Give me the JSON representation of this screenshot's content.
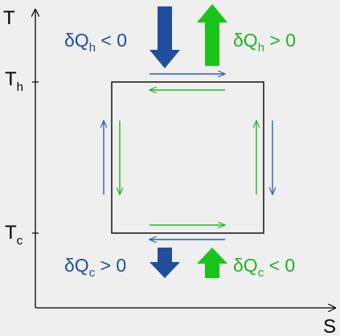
{
  "axes": {
    "y_label": "T",
    "x_label": "S",
    "tick_high": {
      "main": "T",
      "sub": "h"
    },
    "tick_low": {
      "main": "T",
      "sub": "c"
    }
  },
  "heat_labels": {
    "top_left": {
      "pre": "δQ",
      "sub": "h",
      "post": " < 0",
      "color": "#1f4e9e"
    },
    "top_right": {
      "pre": "δQ",
      "sub": "h",
      "post": " > 0",
      "color": "#1fb31f"
    },
    "bottom_left": {
      "pre": "δQ",
      "sub": "c",
      "post": " > 0",
      "color": "#1f4e9e"
    },
    "bottom_right": {
      "pre": "δQ",
      "sub": "c",
      "post": " < 0",
      "color": "#1fb31f"
    }
  },
  "colors": {
    "blue": "#1f4e9e",
    "green": "#19c419",
    "line_blue": "#2f5fb0",
    "line_green": "#22b822",
    "axis": "#000000"
  },
  "icons": {
    "top_left_arrow": "big-down-arrow-icon",
    "top_right_arrow": "big-up-arrow-icon",
    "bottom_left_arrow": "small-down-arrow-icon",
    "bottom_right_arrow": "small-up-arrow-icon"
  }
}
